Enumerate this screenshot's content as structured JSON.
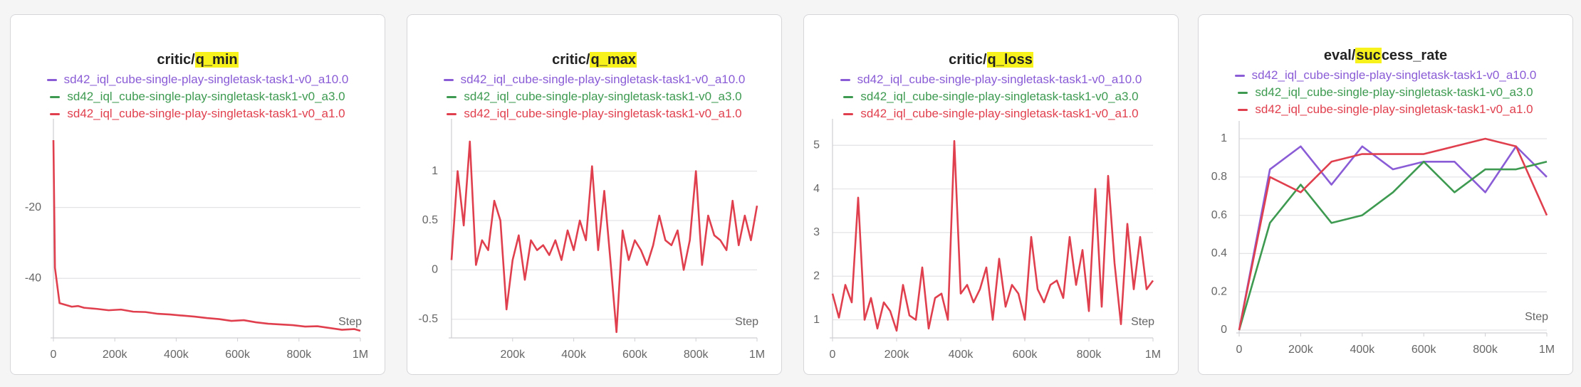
{
  "chart_data": [
    {
      "type": "line",
      "title_parts": [
        {
          "text": "critic/",
          "highlight": false
        },
        {
          "text": "q_min",
          "highlight": true
        }
      ],
      "x_label": "Step",
      "x": [
        0,
        5000,
        20000,
        40000,
        60000,
        80000,
        100000,
        140000,
        180000,
        220000,
        260000,
        300000,
        340000,
        380000,
        420000,
        460000,
        500000,
        540000,
        580000,
        620000,
        660000,
        700000,
        740000,
        780000,
        820000,
        860000,
        900000,
        940000,
        980000,
        1000000
      ],
      "series": [
        {
          "name": "sd42_iql_cube-single-play-singletask-task1-v0_a10.0",
          "color": "#8a5cd6"
        },
        {
          "name": "sd42_iql_cube-single-play-singletask-task1-v0_a3.0",
          "color": "#3d9a50"
        },
        {
          "name": "sd42_iql_cube-single-play-singletask-task1-v0_a1.0",
          "color": "#e0404e",
          "values": [
            -1,
            -37,
            -47,
            -47.5,
            -48,
            -47.8,
            -48.3,
            -48.6,
            -49,
            -48.8,
            -49.4,
            -49.5,
            -50,
            -50.2,
            -50.5,
            -50.8,
            -51.2,
            -51.5,
            -52,
            -51.8,
            -52.4,
            -52.8,
            -53,
            -53.2,
            -53.6,
            -53.5,
            -54,
            -54.5,
            -54.3,
            -54.8
          ]
        }
      ],
      "xlim": [
        0,
        1000000
      ],
      "xticks": [
        0,
        {
          "value": 200000,
          "label": "200k"
        },
        {
          "value": 400000,
          "label": "400k"
        },
        {
          "value": 600000,
          "label": "600k"
        },
        {
          "value": 800000,
          "label": "800k"
        },
        {
          "value": 1000000,
          "label": "1M"
        }
      ],
      "ylim": [
        -56,
        0
      ],
      "yticks": [
        -40,
        -20
      ],
      "grid": true
    },
    {
      "type": "line",
      "title_parts": [
        {
          "text": "critic/",
          "highlight": false
        },
        {
          "text": "q_max",
          "highlight": true
        }
      ],
      "x_label": "Step",
      "x": [
        0,
        20000,
        40000,
        60000,
        80000,
        100000,
        120000,
        140000,
        160000,
        180000,
        200000,
        220000,
        240000,
        260000,
        280000,
        300000,
        320000,
        340000,
        360000,
        380000,
        400000,
        420000,
        440000,
        460000,
        480000,
        500000,
        520000,
        540000,
        560000,
        580000,
        600000,
        620000,
        640000,
        660000,
        680000,
        700000,
        720000,
        740000,
        760000,
        780000,
        800000,
        820000,
        840000,
        860000,
        880000,
        900000,
        920000,
        940000,
        960000,
        980000,
        1000000
      ],
      "series": [
        {
          "name": "sd42_iql_cube-single-play-singletask-task1-v0_a10.0",
          "color": "#8a5cd6"
        },
        {
          "name": "sd42_iql_cube-single-play-singletask-task1-v0_a3.0",
          "color": "#3d9a50"
        },
        {
          "name": "sd42_iql_cube-single-play-singletask-task1-v0_a1.0",
          "color": "#e0404e",
          "values": [
            0.1,
            1.0,
            0.45,
            1.3,
            0.05,
            0.3,
            0.2,
            0.7,
            0.5,
            -0.4,
            0.1,
            0.35,
            -0.1,
            0.3,
            0.2,
            0.25,
            0.15,
            0.3,
            0.1,
            0.4,
            0.2,
            0.5,
            0.3,
            1.05,
            0.2,
            0.8,
            0.1,
            -0.63,
            0.4,
            0.1,
            0.3,
            0.2,
            0.05,
            0.25,
            0.55,
            0.3,
            0.25,
            0.4,
            0.0,
            0.3,
            1.0,
            0.05,
            0.55,
            0.35,
            0.3,
            0.2,
            0.7,
            0.25,
            0.55,
            0.3,
            0.65
          ]
        }
      ],
      "xlim": [
        0,
        1000000
      ],
      "xticks": [
        {
          "value": 200000,
          "label": "200k"
        },
        {
          "value": 400000,
          "label": "400k"
        },
        {
          "value": 600000,
          "label": "600k"
        },
        {
          "value": 800000,
          "label": "800k"
        },
        {
          "value": 1000000,
          "label": "1M"
        }
      ],
      "ylim": [
        -0.66,
        1.35
      ],
      "yticks": [
        -0.5,
        0,
        0.5,
        1
      ],
      "grid": true
    },
    {
      "type": "line",
      "title_parts": [
        {
          "text": "critic/",
          "highlight": false
        },
        {
          "text": "q_loss",
          "highlight": true
        }
      ],
      "x_label": "Step",
      "x": [
        0,
        20000,
        40000,
        60000,
        80000,
        100000,
        120000,
        140000,
        160000,
        180000,
        200000,
        220000,
        240000,
        260000,
        280000,
        300000,
        320000,
        340000,
        360000,
        380000,
        400000,
        420000,
        440000,
        460000,
        480000,
        500000,
        520000,
        540000,
        560000,
        580000,
        600000,
        620000,
        640000,
        660000,
        680000,
        700000,
        720000,
        740000,
        760000,
        780000,
        800000,
        820000,
        840000,
        860000,
        880000,
        900000,
        920000,
        940000,
        960000,
        980000,
        1000000
      ],
      "series": [
        {
          "name": "sd42_iql_cube-single-play-singletask-task1-v0_a10.0",
          "color": "#8a5cd6"
        },
        {
          "name": "sd42_iql_cube-single-play-singletask-task1-v0_a3.0",
          "color": "#3d9a50"
        },
        {
          "name": "sd42_iql_cube-single-play-singletask-task1-v0_a1.0",
          "color": "#e0404e",
          "values": [
            1.6,
            1.05,
            1.8,
            1.4,
            3.8,
            1.0,
            1.5,
            0.8,
            1.4,
            1.2,
            0.75,
            1.8,
            1.1,
            1.0,
            2.2,
            0.8,
            1.5,
            1.6,
            1.0,
            5.1,
            1.6,
            1.8,
            1.4,
            1.7,
            2.2,
            1.0,
            2.4,
            1.3,
            1.8,
            1.6,
            1.0,
            2.9,
            1.7,
            1.4,
            1.8,
            1.9,
            1.5,
            2.9,
            1.8,
            2.6,
            1.2,
            4.0,
            1.3,
            4.3,
            2.3,
            0.9,
            3.2,
            1.7,
            2.9,
            1.7,
            1.9
          ]
        }
      ],
      "xlim": [
        0,
        1000000
      ],
      "xticks": [
        0,
        {
          "value": 200000,
          "label": "200k"
        },
        {
          "value": 400000,
          "label": "400k"
        },
        {
          "value": 600000,
          "label": "600k"
        },
        {
          "value": 800000,
          "label": "800k"
        },
        {
          "value": 1000000,
          "label": "1M"
        }
      ],
      "ylim": [
        0.65,
        5.2
      ],
      "yticks": [
        1,
        2,
        3,
        4,
        5
      ],
      "grid": true
    },
    {
      "type": "line",
      "title_parts": [
        {
          "text": "eval/",
          "highlight": false
        },
        {
          "text": "suc",
          "highlight": true
        },
        {
          "text": "cess_rate",
          "highlight": false
        }
      ],
      "x_label": "Step",
      "x": [
        0,
        100000,
        200000,
        300000,
        400000,
        500000,
        600000,
        700000,
        800000,
        900000,
        1000000
      ],
      "series": [
        {
          "name": "sd42_iql_cube-single-play-singletask-task1-v0_a10.0",
          "color": "#8a5cd6",
          "values": [
            0,
            0.84,
            0.96,
            0.76,
            0.96,
            0.84,
            0.88,
            0.88,
            0.72,
            0.96,
            0.8
          ]
        },
        {
          "name": "sd42_iql_cube-single-play-singletask-task1-v0_a3.0",
          "color": "#3d9a50",
          "values": [
            0,
            0.56,
            0.76,
            0.56,
            0.6,
            0.72,
            0.88,
            0.72,
            0.84,
            0.84,
            0.88
          ]
        },
        {
          "name": "sd42_iql_cube-single-play-singletask-task1-v0_a1.0",
          "color": "#e0404e",
          "values": [
            0,
            0.8,
            0.72,
            0.88,
            0.92,
            0.92,
            0.92,
            0.96,
            1.0,
            0.96,
            0.6
          ]
        }
      ],
      "xlim": [
        0,
        1000000
      ],
      "xticks": [
        0,
        {
          "value": 200000,
          "label": "200k"
        },
        {
          "value": 400000,
          "label": "400k"
        },
        {
          "value": 600000,
          "label": "600k"
        },
        {
          "value": 800000,
          "label": "800k"
        },
        {
          "value": 1000000,
          "label": "1M"
        }
      ],
      "ylim": [
        0,
        1
      ],
      "yticks": [
        0,
        0.2,
        0.4,
        0.6,
        0.8,
        1
      ],
      "grid": true
    }
  ]
}
